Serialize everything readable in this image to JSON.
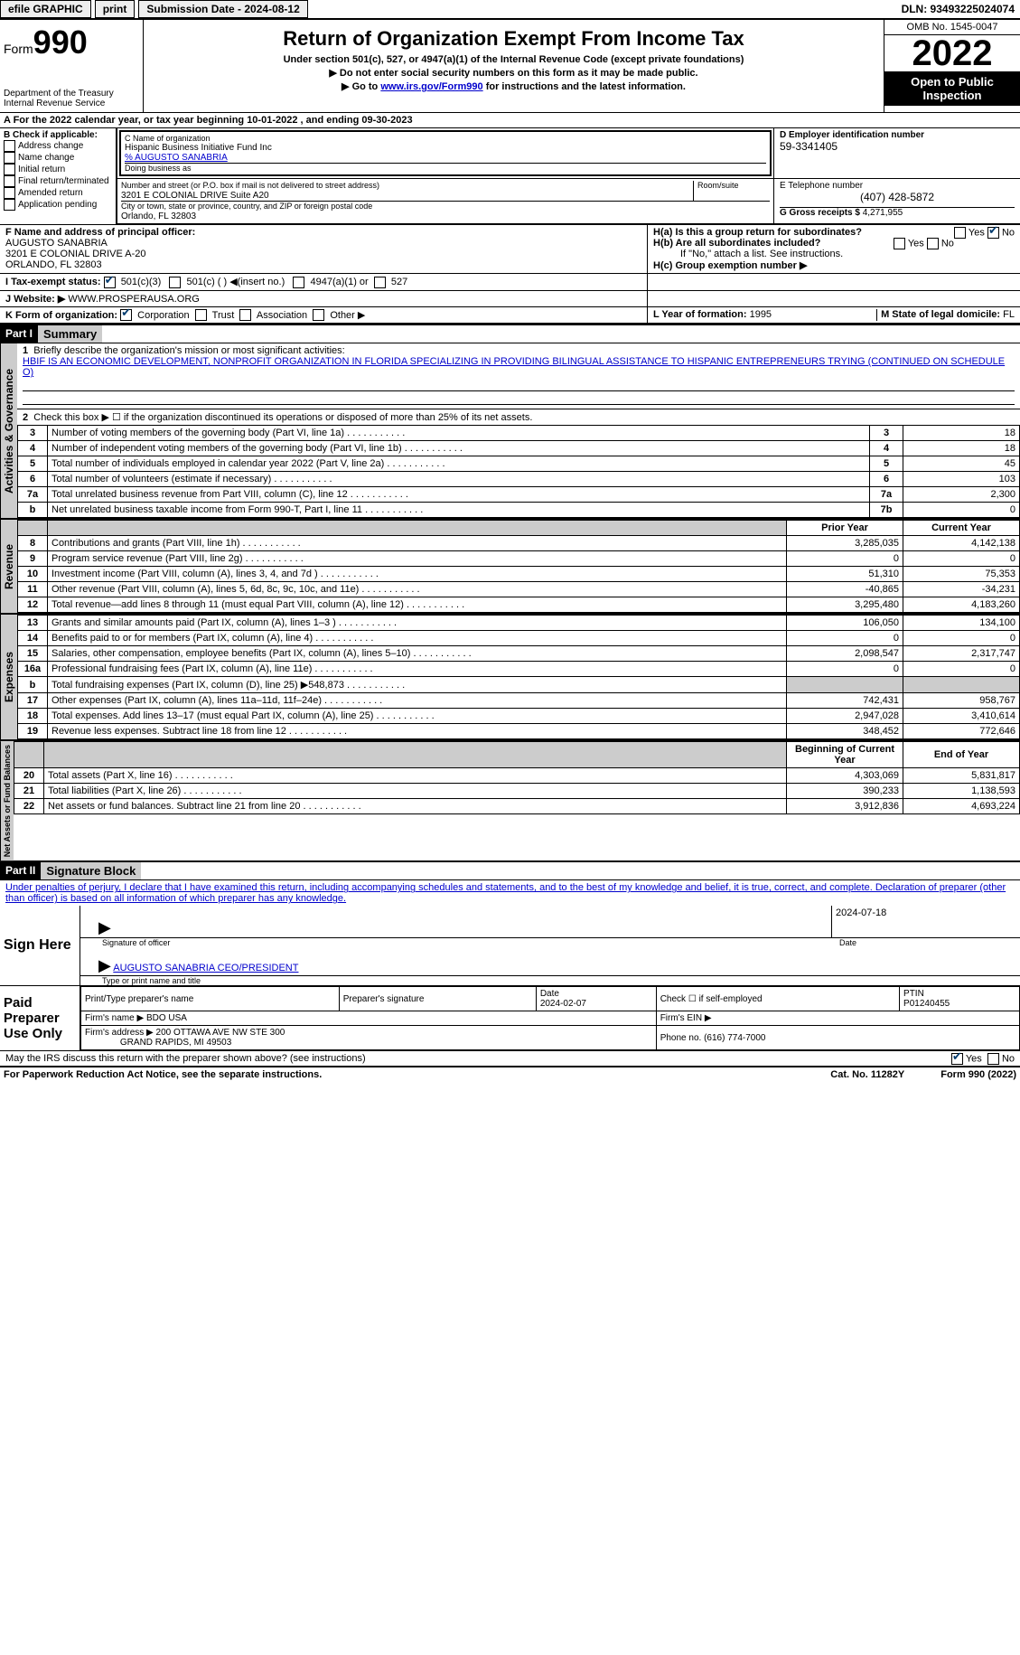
{
  "topbar": {
    "efile": "efile GRAPHIC",
    "print": "print",
    "sub_date_label": "Submission Date - 2024-08-12",
    "dln": "DLN: 93493225024074"
  },
  "header": {
    "form_label": "Form",
    "form_no": "990",
    "dept": "Department of the Treasury\nInternal Revenue Service",
    "title": "Return of Organization Exempt From Income Tax",
    "sub1": "Under section 501(c), 527, or 4947(a)(1) of the Internal Revenue Code (except private foundations)",
    "sub2": "▶ Do not enter social security numbers on this form as it may be made public.",
    "sub3_pre": "▶ Go to ",
    "sub3_link": "www.irs.gov/Form990",
    "sub3_post": " for instructions and the latest information.",
    "omb": "OMB No. 1545-0047",
    "year": "2022",
    "otp": "Open to Public Inspection"
  },
  "line_a": "A For the 2022 calendar year, or tax year beginning 10-01-2022    , and ending 09-30-2023",
  "box_b": {
    "hdr": "B Check if applicable:",
    "items": [
      "Address change",
      "Name change",
      "Initial return",
      "Final return/terminated",
      "Amended return",
      "Application pending"
    ]
  },
  "box_c": {
    "name_label": "C Name of organization",
    "name": "Hispanic Business Initiative Fund Inc",
    "care": "% AUGUSTO SANABRIA",
    "dba_label": "Doing business as",
    "addr_label": "Number and street (or P.O. box if mail is not delivered to street address)",
    "addr": "3201 E COLONIAL DRIVE Suite A20",
    "room_label": "Room/suite",
    "city_label": "City or town, state or province, country, and ZIP or foreign postal code",
    "city": "Orlando, FL  32803"
  },
  "box_d": {
    "label": "D Employer identification number",
    "val": "59-3341405"
  },
  "box_e": {
    "label": "E Telephone number",
    "val": "(407) 428-5872"
  },
  "box_g": {
    "label": "G Gross receipts $",
    "val": "4,271,955"
  },
  "box_f": {
    "label": "F Name and address of principal officer:",
    "name": "AUGUSTO SANABRIA",
    "addr1": "3201 E COLONIAL DRIVE A-20",
    "addr2": "ORLANDO, FL  32803"
  },
  "box_h": {
    "a": "H(a)  Is this a group return for subordinates?",
    "b": "H(b)  Are all subordinates included?",
    "b_note": "If \"No,\" attach a list. See instructions.",
    "c": "H(c)  Group exemption number ▶",
    "yes": "Yes",
    "no": "No"
  },
  "line_i": {
    "label": "I   Tax-exempt status:",
    "o1": "501(c)(3)",
    "o2": "501(c) (  ) ◀(insert no.)",
    "o3": "4947(a)(1) or",
    "o4": "527"
  },
  "line_j": {
    "label": "J   Website: ▶",
    "val": " WWW.PROSPERAUSA.ORG"
  },
  "line_k": {
    "label": "K Form of organization:",
    "o1": "Corporation",
    "o2": "Trust",
    "o3": "Association",
    "o4": "Other ▶"
  },
  "line_l": {
    "label": "L Year of formation:",
    "val": "1995"
  },
  "line_m": {
    "label": "M State of legal domicile:",
    "val": "FL"
  },
  "part1": {
    "hdr": "Part I",
    "title": "Summary",
    "l1_label": "Briefly describe the organization's mission or most significant activities:",
    "l1_text": "HBIF IS AN ECONOMIC DEVELOPMENT, NONPROFIT ORGANIZATION IN FLORIDA SPECIALIZING IN PROVIDING BILINGUAL ASSISTANCE TO HISPANIC ENTREPRENEURS TRYING (CONTINUED ON SCHEDULE O)",
    "l2": "Check this box ▶ ☐ if the organization discontinued its operations or disposed of more than 25% of its net assets.",
    "rows_gov": [
      {
        "n": "3",
        "lbl": "Number of voting members of the governing body (Part VI, line 1a)",
        "box": "3",
        "v": "18"
      },
      {
        "n": "4",
        "lbl": "Number of independent voting members of the governing body (Part VI, line 1b)",
        "box": "4",
        "v": "18"
      },
      {
        "n": "5",
        "lbl": "Total number of individuals employed in calendar year 2022 (Part V, line 2a)",
        "box": "5",
        "v": "45"
      },
      {
        "n": "6",
        "lbl": "Total number of volunteers (estimate if necessary)",
        "box": "6",
        "v": "103"
      },
      {
        "n": "7a",
        "lbl": "Total unrelated business revenue from Part VIII, column (C), line 12",
        "box": "7a",
        "v": "2,300"
      },
      {
        "n": "b",
        "lbl": "Net unrelated business taxable income from Form 990-T, Part I, line 11",
        "box": "7b",
        "v": "0"
      }
    ],
    "py": "Prior Year",
    "cy": "Current Year",
    "rows_rev": [
      {
        "n": "8",
        "lbl": "Contributions and grants (Part VIII, line 1h)",
        "py": "3,285,035",
        "cy": "4,142,138"
      },
      {
        "n": "9",
        "lbl": "Program service revenue (Part VIII, line 2g)",
        "py": "0",
        "cy": "0"
      },
      {
        "n": "10",
        "lbl": "Investment income (Part VIII, column (A), lines 3, 4, and 7d )",
        "py": "51,310",
        "cy": "75,353"
      },
      {
        "n": "11",
        "lbl": "Other revenue (Part VIII, column (A), lines 5, 6d, 8c, 9c, 10c, and 11e)",
        "py": "-40,865",
        "cy": "-34,231"
      },
      {
        "n": "12",
        "lbl": "Total revenue—add lines 8 through 11 (must equal Part VIII, column (A), line 12)",
        "py": "3,295,480",
        "cy": "4,183,260"
      }
    ],
    "rows_exp": [
      {
        "n": "13",
        "lbl": "Grants and similar amounts paid (Part IX, column (A), lines 1–3 )",
        "py": "106,050",
        "cy": "134,100"
      },
      {
        "n": "14",
        "lbl": "Benefits paid to or for members (Part IX, column (A), line 4)",
        "py": "0",
        "cy": "0"
      },
      {
        "n": "15",
        "lbl": "Salaries, other compensation, employee benefits (Part IX, column (A), lines 5–10)",
        "py": "2,098,547",
        "cy": "2,317,747"
      },
      {
        "n": "16a",
        "lbl": "Professional fundraising fees (Part IX, column (A), line 11e)",
        "py": "0",
        "cy": "0"
      },
      {
        "n": "b",
        "lbl": "Total fundraising expenses (Part IX, column (D), line 25) ▶548,873",
        "py": "",
        "cy": "",
        "shade": true
      },
      {
        "n": "17",
        "lbl": "Other expenses (Part IX, column (A), lines 11a–11d, 11f–24e)",
        "py": "742,431",
        "cy": "958,767"
      },
      {
        "n": "18",
        "lbl": "Total expenses. Add lines 13–17 (must equal Part IX, column (A), line 25)",
        "py": "2,947,028",
        "cy": "3,410,614"
      },
      {
        "n": "19",
        "lbl": "Revenue less expenses. Subtract line 18 from line 12",
        "py": "348,452",
        "cy": "772,646"
      }
    ],
    "bcy": "Beginning of Current Year",
    "eoy": "End of Year",
    "rows_net": [
      {
        "n": "20",
        "lbl": "Total assets (Part X, line 16)",
        "py": "4,303,069",
        "cy": "5,831,817"
      },
      {
        "n": "21",
        "lbl": "Total liabilities (Part X, line 26)",
        "py": "390,233",
        "cy": "1,138,593"
      },
      {
        "n": "22",
        "lbl": "Net assets or fund balances. Subtract line 21 from line 20",
        "py": "3,912,836",
        "cy": "4,693,224"
      }
    ],
    "vert_gov": "Activities & Governance",
    "vert_rev": "Revenue",
    "vert_exp": "Expenses",
    "vert_net": "Net Assets or Fund Balances"
  },
  "part2": {
    "hdr": "Part II",
    "title": "Signature Block",
    "decl": "Under penalties of perjury, I declare that I have examined this return, including accompanying schedules and statements, and to the best of my knowledge and belief, it is true, correct, and complete. Declaration of preparer (other than officer) is based on all information of which preparer has any knowledge.",
    "sign_here": "Sign Here",
    "sig_officer": "Signature of officer",
    "sig_date": "2024-07-18",
    "date_lbl": "Date",
    "officer_name": "AUGUSTO SANABRIA CEO/PRESIDENT",
    "officer_lbl": "Type or print name and title",
    "paid": "Paid Preparer Use Only",
    "prep_name_lbl": "Print/Type preparer's name",
    "prep_sig_lbl": "Preparer's signature",
    "prep_date_lbl": "Date",
    "prep_date": "2024-02-07",
    "self_emp": "Check ☐ if self-employed",
    "ptin_lbl": "PTIN",
    "ptin": "P01240455",
    "firm_lbl": "Firm's name   ▶",
    "firm": "BDO USA",
    "ein_lbl": "Firm's EIN ▶",
    "firm_addr_lbl": "Firm's address ▶",
    "firm_addr": "200 OTTAWA AVE NW STE 300",
    "firm_city": "GRAND RAPIDS, MI  49503",
    "phone_lbl": "Phone no.",
    "phone": "(616) 774-7000",
    "discuss": "May the IRS discuss this return with the preparer shown above? (see instructions)",
    "yes": "Yes",
    "no": "No"
  },
  "footer": {
    "pra": "For Paperwork Reduction Act Notice, see the separate instructions.",
    "cat": "Cat. No. 11282Y",
    "form": "Form 990 (2022)"
  }
}
